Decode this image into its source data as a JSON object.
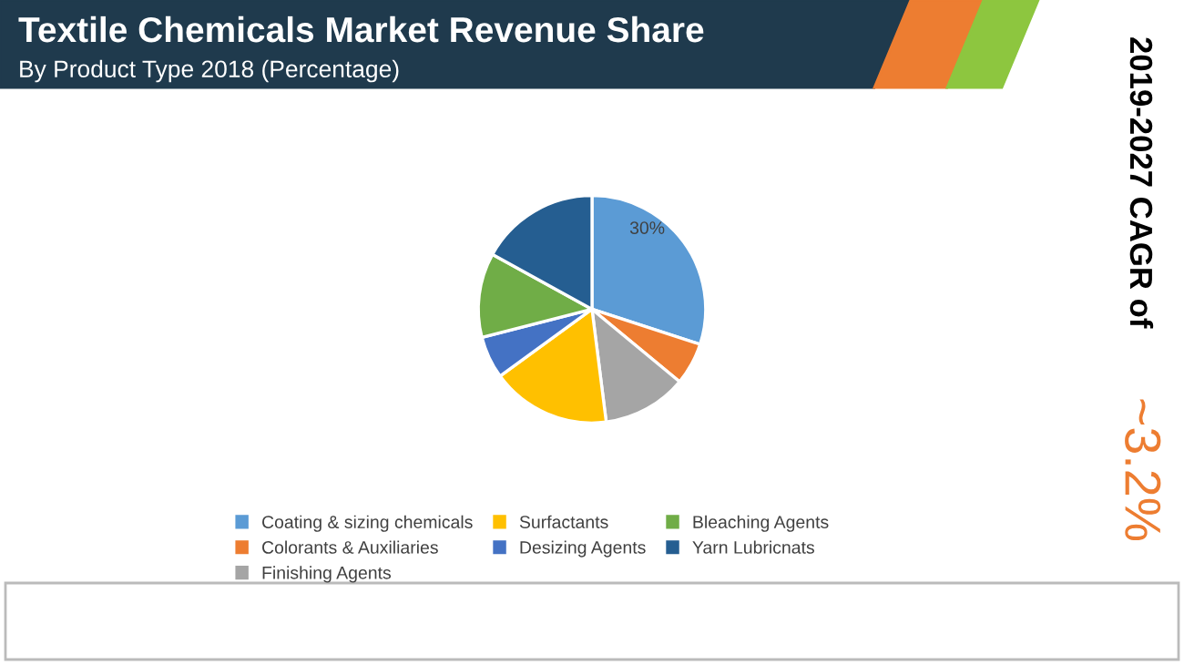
{
  "chart_data": {
    "type": "pie",
    "title": "Textile Chemicals Market Revenue Share",
    "subtitle": "By Product Type 2018 (Percentage)",
    "categories": [
      "Coating & sizing chemicals",
      "Colorants & Auxiliaries",
      "Finishing Agents",
      "Surfactants",
      "Desizing Agents",
      "Bleaching Agents",
      "Yarn Lubricnats"
    ],
    "values": [
      30,
      6,
      12,
      17,
      6,
      12,
      17
    ],
    "colors": [
      "#5b9bd5",
      "#ed7d31",
      "#a5a5a5",
      "#ffc000",
      "#4472c4",
      "#70ad47",
      "#255e91"
    ],
    "value_labels": [
      "30%",
      null,
      null,
      null,
      null,
      null,
      null
    ],
    "legend": "bottom",
    "annotations": [
      "2019-2027 CAGR of",
      "~3.2%"
    ]
  }
}
